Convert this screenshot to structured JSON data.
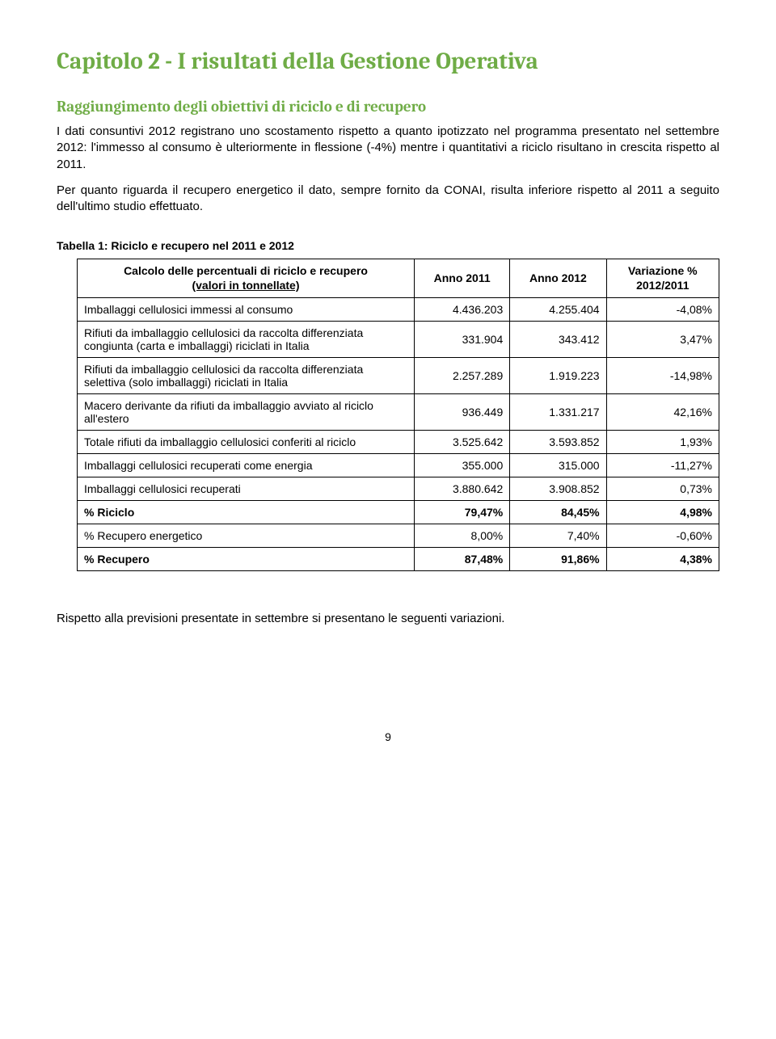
{
  "chapter_title": "Capitolo 2 - I risultati della Gestione Operativa",
  "section_title": "Raggiungimento degli obiettivi di riciclo e di recupero",
  "paragraph1": "I dati consuntivi 2012 registrano uno scostamento rispetto a quanto ipotizzato nel programma presentato nel settembre 2012: l'immesso al consumo è ulteriormente in flessione (-4%) mentre i quantitativi a riciclo risultano in crescita rispetto al 2011.",
  "paragraph2": "Per quanto riguarda il recupero energetico il dato, sempre fornito da CONAI, risulta inferiore rispetto al 2011 a seguito dell'ultimo studio effettuato.",
  "table_caption": "Tabella 1: Riciclo e recupero nel 2011 e 2012",
  "table": {
    "header_col1_line1": "Calcolo delle percentuali di riciclo e recupero",
    "header_col1_line2": "(valori in tonnellate)",
    "header_col2": "Anno 2011",
    "header_col3": "Anno 2012",
    "header_col4_line1": "Variazione %",
    "header_col4_line2": "2012/2011",
    "rows": [
      {
        "label": "Imballaggi cellulosici immessi al consumo",
        "c2011": "4.436.203",
        "c2012": "4.255.404",
        "var": "-4,08%",
        "bold": false
      },
      {
        "label": "Rifiuti da imballaggio cellulosici da raccolta differenziata congiunta (carta e imballaggi) riciclati in Italia",
        "c2011": "331.904",
        "c2012": "343.412",
        "var": "3,47%",
        "bold": false
      },
      {
        "label": "Rifiuti da imballaggio cellulosici  da raccolta differenziata selettiva (solo imballaggi) riciclati in Italia",
        "c2011": "2.257.289",
        "c2012": "1.919.223",
        "var": "-14,98%",
        "bold": false
      },
      {
        "label": "Macero derivante da rifiuti da imballaggio avviato al riciclo all'estero",
        "c2011": "936.449",
        "c2012": "1.331.217",
        "var": "42,16%",
        "bold": false
      },
      {
        "label": "Totale rifiuti da imballaggio cellulosici conferiti al riciclo",
        "c2011": "3.525.642",
        "c2012": "3.593.852",
        "var": "1,93%",
        "bold": false
      },
      {
        "label": "Imballaggi cellulosici recuperati come energia",
        "c2011": "355.000",
        "c2012": "315.000",
        "var": "-11,27%",
        "bold": false
      },
      {
        "label": "Imballaggi cellulosici  recuperati",
        "c2011": "3.880.642",
        "c2012": "3.908.852",
        "var": "0,73%",
        "bold": false
      },
      {
        "label": "% Riciclo",
        "c2011": "79,47%",
        "c2012": "84,45%",
        "var": "4,98%",
        "bold": true
      },
      {
        "label": "% Recupero energetico",
        "c2011": "8,00%",
        "c2012": "7,40%",
        "var": "-0,60%",
        "bold": false
      },
      {
        "label": "% Recupero",
        "c2011": "87,48%",
        "c2012": "91,86%",
        "var": "4,38%",
        "bold": true
      }
    ]
  },
  "footer_paragraph": "Rispetto alla previsioni presentate in settembre si presentano le seguenti variazioni.",
  "page_number": "9",
  "colors": {
    "heading_green": "#6fac46",
    "text_black": "#000000",
    "background": "#ffffff",
    "border": "#000000"
  },
  "fonts": {
    "heading_family": "Cambria, Georgia, serif",
    "body_family": "Arial, Helvetica, sans-serif",
    "chapter_size_pt": 22,
    "section_size_pt": 14,
    "body_size_pt": 11,
    "table_size_pt": 10.5
  }
}
